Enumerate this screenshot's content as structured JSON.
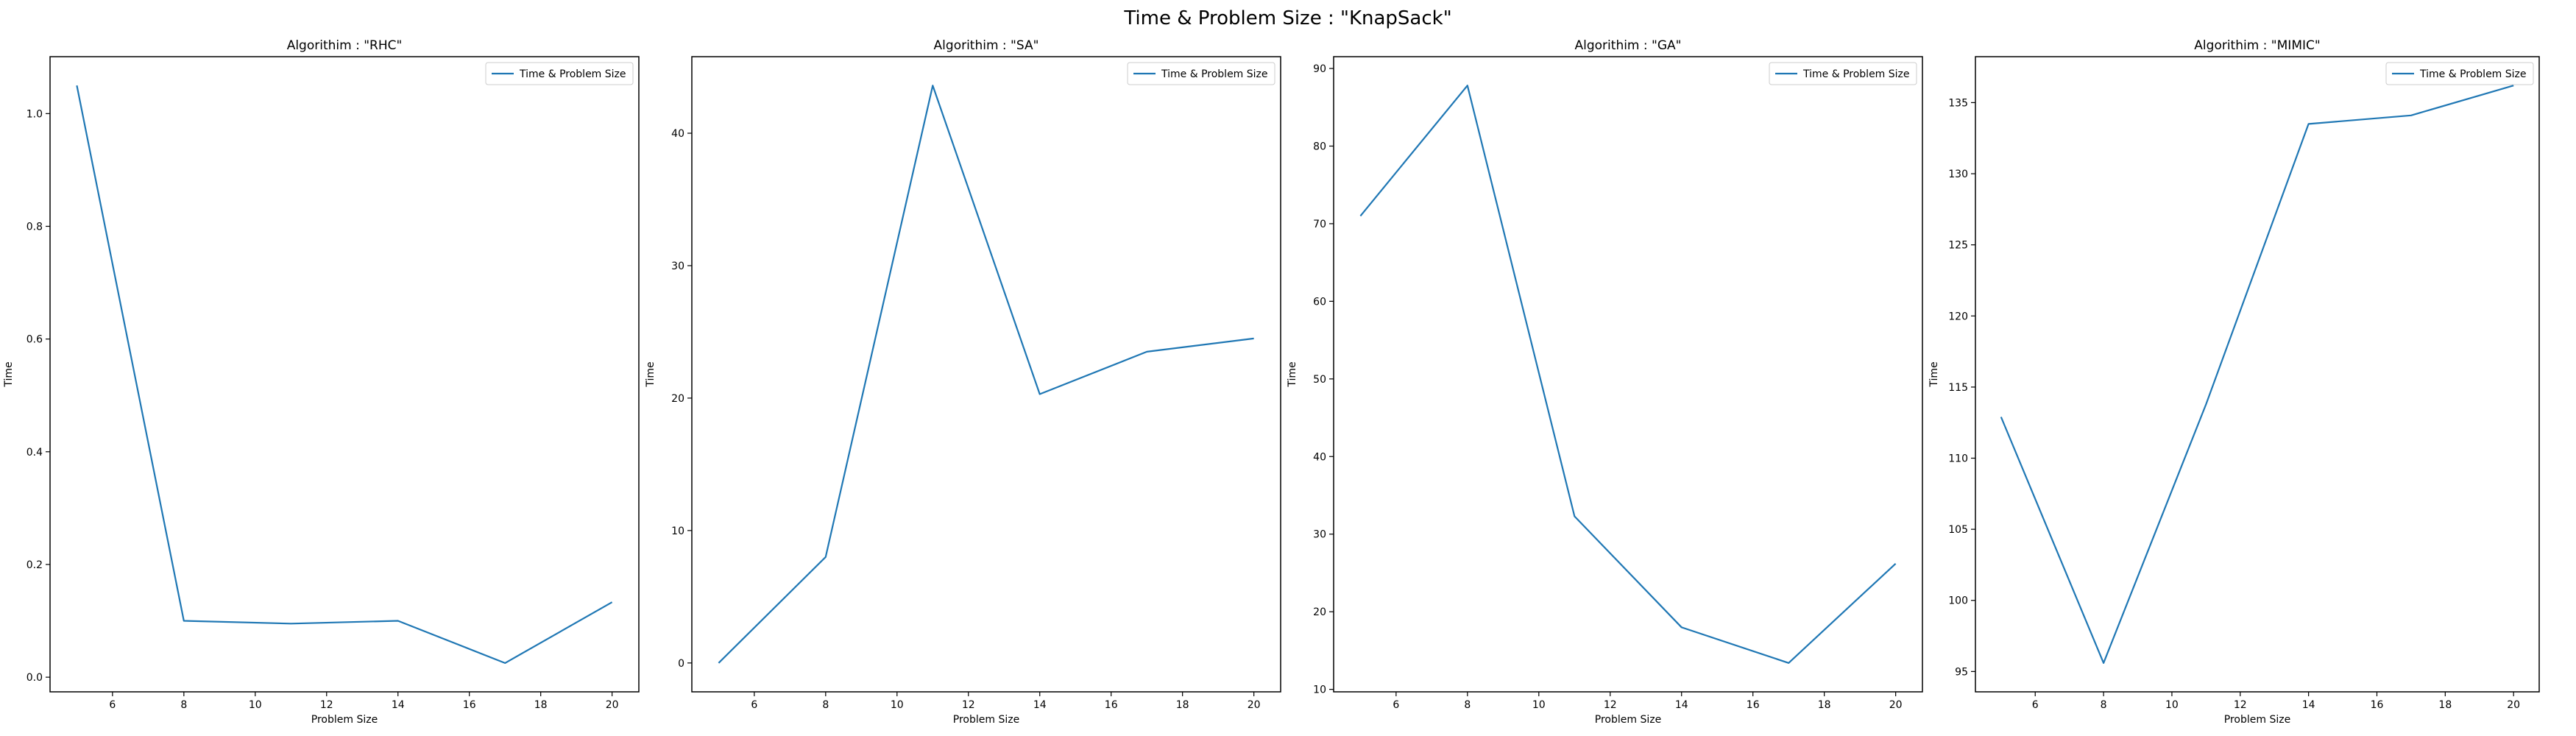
{
  "figure": {
    "suptitle": "Time & Problem Size : \"KnapSack\""
  },
  "chart_data": [
    {
      "type": "line",
      "title": "Algorithim : \"RHC\"",
      "xlabel": "Problem Size",
      "ylabel": "Time",
      "x": [
        5,
        8,
        11,
        14,
        17,
        20
      ],
      "series": [
        {
          "name": "Time & Problem Size",
          "values": [
            1.05,
            0.1,
            0.095,
            0.1,
            0.025,
            0.133
          ],
          "color": "#1f77b4"
        }
      ],
      "xlim": [
        4.25,
        20.75
      ],
      "ylim": [
        -0.026,
        1.101
      ],
      "xticks": [
        6,
        8,
        10,
        12,
        14,
        16,
        18,
        20
      ],
      "xticklabels": [
        "6",
        "8",
        "10",
        "12",
        "14",
        "16",
        "18",
        "20"
      ],
      "yticks": [
        0.0,
        0.2,
        0.4,
        0.6,
        0.8,
        1.0
      ],
      "yticklabels": [
        "0.0",
        "0.2",
        "0.4",
        "0.6",
        "0.8",
        "1.0"
      ],
      "legend": "upper right",
      "grid": false
    },
    {
      "type": "line",
      "title": "Algorithim : \"SA\"",
      "xlabel": "Problem Size",
      "ylabel": "Time",
      "x": [
        5,
        8,
        11,
        14,
        17,
        20
      ],
      "series": [
        {
          "name": "Time & Problem Size",
          "values": [
            0.0,
            8.0,
            43.6,
            20.3,
            23.5,
            24.5
          ],
          "color": "#1f77b4"
        }
      ],
      "xlim": [
        4.25,
        20.75
      ],
      "ylim": [
        -2.18,
        45.78
      ],
      "xticks": [
        6,
        8,
        10,
        12,
        14,
        16,
        18,
        20
      ],
      "xticklabels": [
        "6",
        "8",
        "10",
        "12",
        "14",
        "16",
        "18",
        "20"
      ],
      "yticks": [
        0,
        10,
        20,
        30,
        40
      ],
      "yticklabels": [
        "0",
        "10",
        "20",
        "30",
        "40"
      ],
      "legend": "upper right",
      "grid": false
    },
    {
      "type": "line",
      "title": "Algorithim : \"GA\"",
      "xlabel": "Problem Size",
      "ylabel": "Time",
      "x": [
        5,
        8,
        11,
        14,
        17,
        20
      ],
      "series": [
        {
          "name": "Time & Problem Size",
          "values": [
            71.0,
            87.8,
            32.3,
            18.0,
            13.4,
            26.2
          ],
          "color": "#1f77b4"
        }
      ],
      "xlim": [
        4.25,
        20.75
      ],
      "ylim": [
        9.68,
        91.52
      ],
      "xticks": [
        6,
        8,
        10,
        12,
        14,
        16,
        18,
        20
      ],
      "xticklabels": [
        "6",
        "8",
        "10",
        "12",
        "14",
        "16",
        "18",
        "20"
      ],
      "yticks": [
        10,
        20,
        30,
        40,
        50,
        60,
        70,
        80,
        90
      ],
      "yticklabels": [
        "10",
        "20",
        "30",
        "40",
        "50",
        "60",
        "70",
        "80",
        "90"
      ],
      "legend": "upper right",
      "grid": false
    },
    {
      "type": "line",
      "title": "Algorithim : \"MIMIC\"",
      "xlabel": "Problem Size",
      "ylabel": "Time",
      "x": [
        5,
        8,
        11,
        14,
        17,
        20
      ],
      "series": [
        {
          "name": "Time & Problem Size",
          "values": [
            112.9,
            95.6,
            113.8,
            133.5,
            134.1,
            136.2
          ],
          "color": "#1f77b4"
        }
      ],
      "xlim": [
        4.25,
        20.75
      ],
      "ylim": [
        93.57,
        138.23
      ],
      "xticks": [
        6,
        8,
        10,
        12,
        14,
        16,
        18,
        20
      ],
      "xticklabels": [
        "6",
        "8",
        "10",
        "12",
        "14",
        "16",
        "18",
        "20"
      ],
      "yticks": [
        95,
        100,
        105,
        110,
        115,
        120,
        125,
        130,
        135
      ],
      "yticklabels": [
        "95",
        "100",
        "105",
        "110",
        "115",
        "120",
        "125",
        "130",
        "135"
      ],
      "legend": "upper right",
      "grid": false
    }
  ]
}
